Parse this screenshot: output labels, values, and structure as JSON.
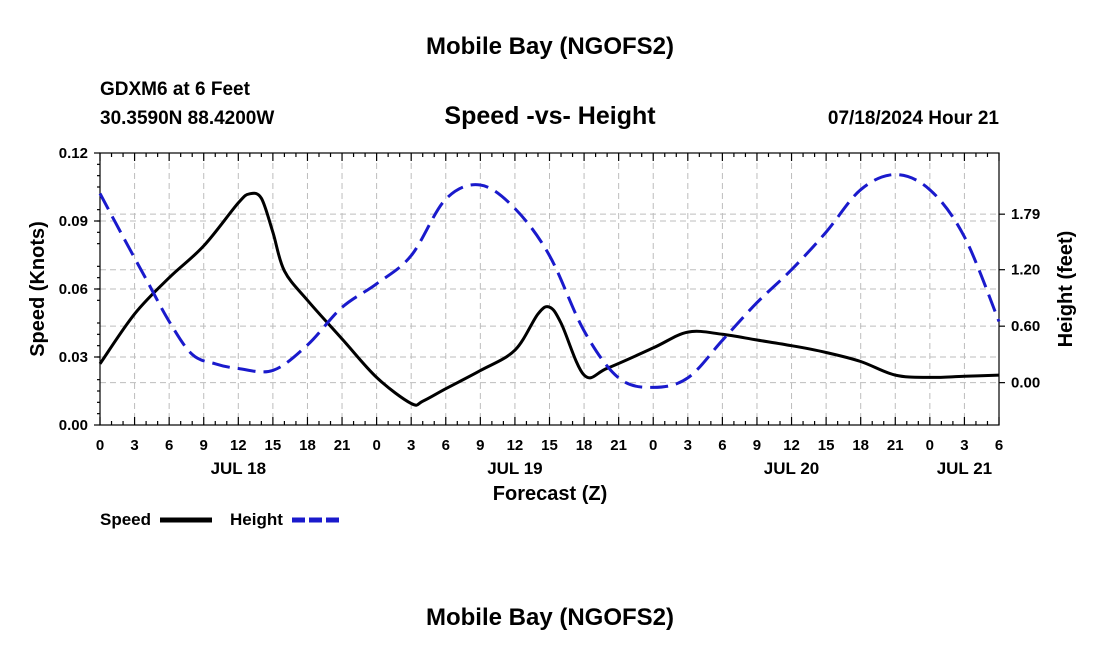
{
  "top_title": "Mobile Bay (NGOFS2)",
  "bottom_title": "Mobile Bay (NGOFS2)",
  "station": "GDXM6 at 6 Feet",
  "coords": "30.3590N  88.4200W",
  "subtitle": "Speed -vs- Height",
  "datetime": "07/18/2024 Hour 21",
  "chart_data": {
    "type": "line",
    "title": "Speed -vs- Height",
    "xlabel": "Forecast (Z)",
    "ylabel": "Speed (Knots)",
    "y2label": "Height (feet)",
    "x_range_hours": [
      0,
      78
    ],
    "ylim": [
      0,
      0.12
    ],
    "y2lim": [
      -0.45,
      2.44
    ],
    "x_tick_hours": [
      0,
      3,
      6,
      9,
      12,
      15,
      18,
      21,
      24,
      27,
      30,
      33,
      36,
      39,
      42,
      45,
      48,
      51,
      54,
      57,
      60,
      63,
      66,
      69,
      72,
      75,
      78
    ],
    "x_tick_labels": [
      "0",
      "3",
      "6",
      "9",
      "12",
      "15",
      "18",
      "21",
      "0",
      "3",
      "6",
      "9",
      "12",
      "15",
      "18",
      "21",
      "0",
      "3",
      "6",
      "9",
      "12",
      "15",
      "18",
      "21",
      "0",
      "3",
      "6"
    ],
    "date_labels": [
      {
        "hour": 12,
        "label": "JUL 18"
      },
      {
        "hour": 36,
        "label": "JUL 19"
      },
      {
        "hour": 60,
        "label": "JUL 20"
      },
      {
        "hour": 75,
        "label": "JUL 21"
      }
    ],
    "y_ticks": [
      0,
      0.03,
      0.06,
      0.09,
      0.12
    ],
    "y_tick_labels": [
      "0.00",
      "0.03",
      "0.06",
      "0.09",
      "0.12"
    ],
    "y2_ticks": [
      0,
      0.6,
      1.2,
      1.79
    ],
    "y2_tick_labels": [
      "0.00",
      "0.60",
      "1.20",
      "1.79"
    ],
    "grid": true,
    "series": [
      {
        "name": "Speed",
        "axis": "left",
        "color": "#000000",
        "style": "solid",
        "x": [
          0,
          3,
          6,
          9,
          12,
          13,
          14,
          15,
          16,
          18,
          21,
          24,
          27,
          28,
          30,
          33,
          36,
          38,
          39,
          40,
          42,
          44,
          48,
          51,
          54,
          57,
          60,
          63,
          66,
          69,
          72,
          75,
          78
        ],
        "y": [
          0.027,
          0.049,
          0.065,
          0.079,
          0.098,
          0.102,
          0.1,
          0.085,
          0.068,
          0.055,
          0.038,
          0.021,
          0.0095,
          0.0105,
          0.016,
          0.024,
          0.033,
          0.049,
          0.052,
          0.045,
          0.022,
          0.025,
          0.034,
          0.041,
          0.04,
          0.0375,
          0.035,
          0.032,
          0.028,
          0.022,
          0.021,
          0.0215,
          0.022
        ]
      },
      {
        "name": "Height",
        "axis": "right",
        "color": "#1a1acc",
        "style": "dashed",
        "x": [
          0,
          2,
          4,
          6,
          8,
          10,
          12,
          15,
          18,
          21,
          24,
          27,
          30,
          33,
          36,
          39,
          42,
          45,
          48,
          51,
          54,
          57,
          60,
          63,
          66,
          69,
          72,
          75,
          78
        ],
        "y": [
          2.01,
          1.55,
          1.1,
          0.65,
          0.3,
          0.2,
          0.15,
          0.13,
          0.4,
          0.8,
          1.05,
          1.35,
          1.95,
          2.1,
          1.85,
          1.35,
          0.55,
          0.05,
          -0.05,
          0.05,
          0.45,
          0.85,
          1.2,
          1.6,
          2.05,
          2.21,
          2.05,
          1.55,
          0.65
        ]
      }
    ],
    "legend": [
      {
        "label": "Speed",
        "color": "#000000",
        "style": "solid"
      },
      {
        "label": "Height",
        "color": "#1a1acc",
        "style": "dashed"
      }
    ]
  }
}
